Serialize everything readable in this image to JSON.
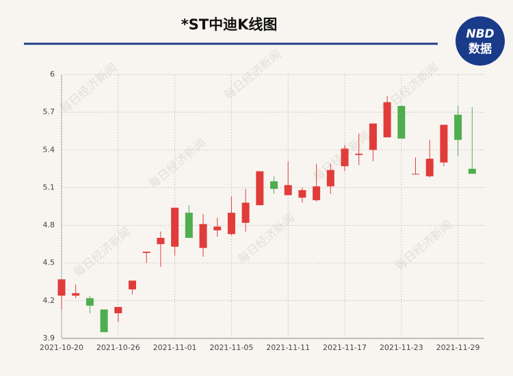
{
  "chart_data": {
    "type": "candlestick",
    "title": "*ST中迪K线图",
    "logo": {
      "top": "NBD",
      "bottom": "数据"
    },
    "watermark": "每日经济新闻",
    "categories": [
      "2021-10-20",
      null,
      null,
      null,
      "2021-10-26",
      null,
      null,
      null,
      "2021-11-01",
      null,
      null,
      null,
      "2021-11-05",
      null,
      null,
      null,
      "2021-11-11",
      null,
      null,
      null,
      "2021-11-17",
      null,
      null,
      null,
      "2021-11-23",
      null,
      null,
      null,
      "2021-11-29",
      null
    ],
    "open": [
      4.24,
      4.24,
      4.22,
      4.13,
      4.1,
      4.29,
      4.58,
      4.65,
      4.63,
      4.9,
      4.62,
      4.76,
      4.73,
      4.82,
      4.96,
      5.15,
      5.04,
      5.02,
      5.0,
      5.11,
      5.27,
      5.36,
      5.4,
      5.5,
      5.75,
      5.21,
      5.19,
      5.3,
      5.68,
      5.25
    ],
    "high": [
      4.37,
      4.33,
      4.24,
      4.13,
      4.15,
      4.36,
      4.59,
      4.75,
      4.94,
      4.96,
      4.89,
      4.86,
      5.03,
      5.09,
      5.23,
      5.19,
      5.31,
      5.1,
      5.29,
      5.29,
      5.44,
      5.53,
      5.61,
      5.83,
      5.75,
      5.34,
      5.48,
      5.6,
      5.75,
      5.74
    ],
    "low": [
      4.13,
      4.22,
      4.1,
      3.95,
      4.03,
      4.25,
      4.5,
      4.47,
      4.56,
      4.7,
      4.55,
      4.71,
      4.72,
      4.75,
      4.96,
      5.05,
      5.04,
      4.98,
      4.99,
      5.05,
      5.23,
      5.28,
      5.31,
      5.5,
      5.49,
      5.21,
      5.18,
      5.27,
      5.35,
      5.21
    ],
    "close": [
      4.37,
      4.26,
      4.16,
      3.95,
      4.15,
      4.36,
      4.59,
      4.7,
      4.94,
      4.7,
      4.81,
      4.79,
      4.9,
      4.98,
      5.23,
      5.09,
      5.12,
      5.08,
      5.11,
      5.24,
      5.41,
      5.37,
      5.61,
      5.78,
      5.49,
      5.21,
      5.33,
      5.6,
      5.48,
      5.21
    ],
    "up_color": "#e03c3a",
    "down_color": "#4fae4f",
    "ylim": [
      3.9,
      6
    ],
    "yticks": [
      {
        "value": 3.9,
        "label": "3.9"
      },
      {
        "value": 4.2,
        "label": "4.2"
      },
      {
        "value": 4.5,
        "label": "4.5"
      },
      {
        "value": 4.8,
        "label": "4.8"
      },
      {
        "value": 5.1,
        "label": "5.1"
      },
      {
        "value": 5.4,
        "label": "5.4"
      },
      {
        "value": 5.7,
        "label": "5.7"
      },
      {
        "value": 6,
        "label": "6"
      }
    ],
    "grid": true
  }
}
